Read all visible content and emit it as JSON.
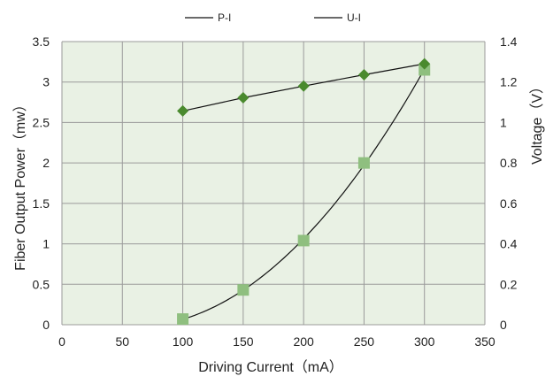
{
  "chart_data": {
    "type": "line",
    "xlabel": "Driving Current（mA）",
    "ylabel": "Fiber Output Power（mw）",
    "y2label": "Voltage（V）",
    "xlim": [
      0,
      350
    ],
    "ylim": [
      0,
      3.5
    ],
    "y2lim": [
      0,
      1.4
    ],
    "xticks": [
      "0",
      "50",
      "100",
      "150",
      "200",
      "250",
      "300",
      "350"
    ],
    "yticks": [
      "0",
      "0.5",
      "1",
      "1.5",
      "2",
      "2.5",
      "3",
      "3.5"
    ],
    "y2ticks": [
      "0",
      "0.2",
      "0.4",
      "0.6",
      "0.8",
      "1",
      "1.2",
      "1.4"
    ],
    "grid": true,
    "legend_position": "top",
    "series": [
      {
        "name": "P-I",
        "axis": "left",
        "marker": "square",
        "color": "#8fbf7f",
        "x": [
          100,
          150,
          200,
          250,
          300
        ],
        "y": [
          0.07,
          0.43,
          1.04,
          2.0,
          3.15
        ]
      },
      {
        "name": "U-I",
        "axis": "right",
        "marker": "diamond",
        "color": "#4a8a2e",
        "x": [
          100,
          150,
          200,
          250,
          300
        ],
        "y": [
          1.057,
          1.122,
          1.18,
          1.236,
          1.29
        ]
      }
    ],
    "colors": {
      "plot_background": "#e9f1e4",
      "gridline": "#9a9a9a",
      "fit_line": "#111111"
    }
  }
}
